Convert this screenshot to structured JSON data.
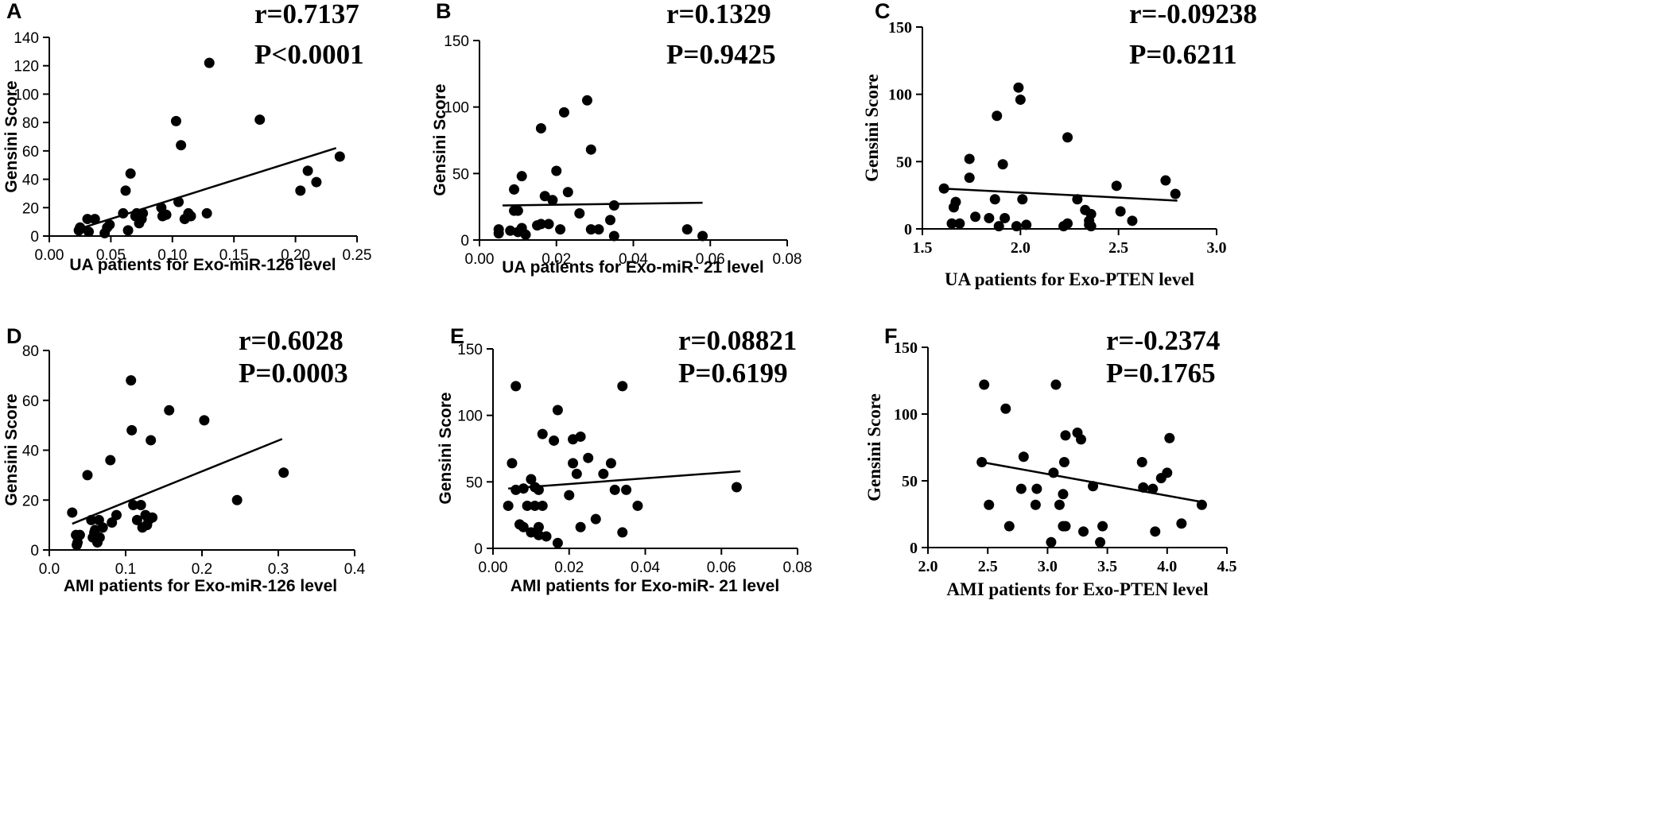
{
  "figure": {
    "layout": "2 rows x 3 columns of scatter plots with linear regression lines"
  },
  "chart_data": [
    {
      "panel": "A",
      "type": "scatter",
      "title": "",
      "xlabel": "UA patients for Exo-miR-126 level",
      "ylabel": "Gensini Score",
      "xlim": [
        0,
        0.25
      ],
      "ylim": [
        0,
        140
      ],
      "xticks": [
        0,
        0.05,
        0.1,
        0.15,
        0.2,
        0.25
      ],
      "xtick_labels": [
        "0.00",
        "0.05",
        "0.10",
        "0.15",
        "0.20",
        "0.25"
      ],
      "yticks": [
        0,
        20,
        40,
        60,
        80,
        100,
        120,
        140
      ],
      "ytick_labels": [
        "0",
        "20",
        "40",
        "60",
        "80",
        "100",
        "120",
        "140"
      ],
      "stats": {
        "r": "r=0.7137",
        "p": "P<0.0001"
      },
      "x": [
        0.024,
        0.025,
        0.031,
        0.032,
        0.037,
        0.045,
        0.047,
        0.049,
        0.06,
        0.062,
        0.064,
        0.066,
        0.07,
        0.071,
        0.073,
        0.075,
        0.076,
        0.091,
        0.092,
        0.095,
        0.103,
        0.105,
        0.107,
        0.11,
        0.113,
        0.115,
        0.128,
        0.13,
        0.171,
        0.204,
        0.21,
        0.217,
        0.236
      ],
      "y": [
        4,
        6,
        12,
        3,
        12,
        2,
        6,
        8,
        16,
        32,
        4,
        44,
        14,
        16,
        9,
        12,
        16,
        20,
        14,
        15,
        81,
        24,
        64,
        12,
        16,
        14,
        16,
        122,
        82,
        32,
        46,
        38,
        56
      ],
      "fit": {
        "x": [
          0.024,
          0.233
        ],
        "y": [
          5,
          62
        ]
      }
    },
    {
      "panel": "B",
      "type": "scatter",
      "title": "",
      "xlabel": "UA patients for Exo-miR- 21 level",
      "ylabel": "Gensini Score",
      "xlim": [
        0,
        0.08
      ],
      "ylim": [
        0,
        150
      ],
      "xticks": [
        0,
        0.02,
        0.04,
        0.06,
        0.08
      ],
      "xtick_labels": [
        "0.00",
        "0.02",
        "0.04",
        "0.06",
        "0.08"
      ],
      "yticks": [
        0,
        50,
        100,
        150
      ],
      "ytick_labels": [
        "0",
        "50",
        "100",
        "150"
      ],
      "stats": {
        "r": "r=0.1329",
        "p": "P=0.9425"
      },
      "x": [
        0.005,
        0.005,
        0.008,
        0.009,
        0.009,
        0.01,
        0.01,
        0.011,
        0.011,
        0.012,
        0.015,
        0.016,
        0.016,
        0.017,
        0.018,
        0.019,
        0.02,
        0.021,
        0.022,
        0.023,
        0.026,
        0.028,
        0.029,
        0.029,
        0.031,
        0.034,
        0.035,
        0.035,
        0.054,
        0.058
      ],
      "y": [
        8,
        5,
        7,
        22,
        38,
        6,
        22,
        9,
        48,
        4,
        11,
        12,
        84,
        33,
        12,
        30,
        52,
        8,
        96,
        36,
        20,
        105,
        68,
        8,
        8,
        15,
        26,
        3,
        8,
        3
      ],
      "fit": {
        "x": [
          0.006,
          0.058
        ],
        "y": [
          26,
          28
        ]
      }
    },
    {
      "panel": "C",
      "type": "scatter",
      "title": "",
      "xlabel": "UA patients for Exo-PTEN level",
      "ylabel": "Gensini Score",
      "xlim": [
        1.5,
        3.0
      ],
      "ylim": [
        0,
        150
      ],
      "xticks": [
        1.5,
        2.0,
        2.5,
        3.0
      ],
      "xtick_labels": [
        "1.5",
        "2.0",
        "2.5",
        "3.0"
      ],
      "yticks": [
        0,
        50,
        100,
        150
      ],
      "ytick_labels": [
        "0",
        "50",
        "100",
        "150"
      ],
      "stats": {
        "r": "r=-0.09238",
        "p": "P=0.6211"
      },
      "x": [
        1.61,
        1.65,
        1.66,
        1.67,
        1.69,
        1.74,
        1.74,
        1.77,
        1.84,
        1.87,
        1.88,
        1.89,
        1.91,
        1.92,
        1.98,
        1.99,
        2.0,
        2.01,
        2.03,
        2.22,
        2.24,
        2.24,
        2.29,
        2.33,
        2.35,
        2.35,
        2.36,
        2.36,
        2.49,
        2.51,
        2.57,
        2.74,
        2.79
      ],
      "y": [
        30,
        4,
        16,
        20,
        4,
        52,
        38,
        9,
        8,
        22,
        84,
        2,
        48,
        8,
        2,
        105,
        96,
        22,
        3,
        2,
        4,
        68,
        22,
        14,
        6,
        3,
        11,
        2,
        32,
        13,
        6,
        36,
        26
      ],
      "fit": {
        "x": [
          1.6,
          2.8
        ],
        "y": [
          30,
          21
        ]
      }
    },
    {
      "panel": "D",
      "type": "scatter",
      "title": "",
      "xlabel": "AMI patients for Exo-miR-126 level",
      "ylabel": "Gensini Score",
      "xlim": [
        0,
        0.4
      ],
      "ylim": [
        0,
        80
      ],
      "xticks": [
        0,
        0.1,
        0.2,
        0.3,
        0.4
      ],
      "xtick_labels": [
        "0.0",
        "0.1",
        "0.2",
        "0.3",
        "0.4"
      ],
      "yticks": [
        0,
        20,
        40,
        60,
        80
      ],
      "ytick_labels": [
        "0",
        "20",
        "40",
        "60",
        "80"
      ],
      "stats": {
        "r": "r=0.6028",
        "p": "P=0.0003"
      },
      "x": [
        0.03,
        0.035,
        0.036,
        0.037,
        0.04,
        0.05,
        0.055,
        0.057,
        0.059,
        0.06,
        0.063,
        0.065,
        0.066,
        0.07,
        0.08,
        0.082,
        0.088,
        0.107,
        0.108,
        0.11,
        0.115,
        0.12,
        0.122,
        0.126,
        0.128,
        0.13,
        0.133,
        0.135,
        0.157,
        0.203,
        0.246,
        0.307
      ],
      "y": [
        15,
        6,
        2,
        3,
        6,
        30,
        12,
        5,
        7,
        8,
        3,
        12,
        5,
        9,
        36,
        11,
        14,
        68,
        48,
        18,
        12,
        18,
        9,
        14,
        10,
        12,
        44,
        13,
        56,
        52,
        20,
        31
      ],
      "fit": {
        "x": [
          0.03,
          0.305
        ],
        "y": [
          10.5,
          44.5
        ]
      }
    },
    {
      "panel": "E",
      "type": "scatter",
      "title": "",
      "xlabel": "AMI patients for Exo-miR- 21 level",
      "ylabel": "Gensini Score",
      "xlim": [
        0,
        0.08
      ],
      "ylim": [
        0,
        150
      ],
      "xticks": [
        0,
        0.02,
        0.04,
        0.06,
        0.08
      ],
      "xtick_labels": [
        "0.00",
        "0.02",
        "0.04",
        "0.06",
        "0.08"
      ],
      "yticks": [
        0,
        50,
        100,
        150
      ],
      "ytick_labels": [
        "0",
        "50",
        "100",
        "150"
      ],
      "stats": {
        "r": "r=0.08821",
        "p": "P=0.6199"
      },
      "x": [
        0.004,
        0.005,
        0.006,
        0.006,
        0.007,
        0.008,
        0.008,
        0.009,
        0.01,
        0.01,
        0.011,
        0.011,
        0.012,
        0.012,
        0.012,
        0.013,
        0.013,
        0.014,
        0.016,
        0.017,
        0.017,
        0.02,
        0.021,
        0.021,
        0.022,
        0.023,
        0.023,
        0.025,
        0.027,
        0.029,
        0.031,
        0.032,
        0.034,
        0.034,
        0.035,
        0.038,
        0.064
      ],
      "y": [
        32,
        64,
        44,
        122,
        18,
        45,
        16,
        32,
        52,
        12,
        32,
        46,
        10,
        44,
        16,
        86,
        32,
        9,
        81,
        104,
        4,
        40,
        82,
        64,
        56,
        84,
        16,
        68,
        22,
        56,
        64,
        44,
        122,
        12,
        44,
        32,
        46
      ],
      "fit": {
        "x": [
          0.004,
          0.065
        ],
        "y": [
          45,
          58
        ]
      }
    },
    {
      "panel": "F",
      "type": "scatter",
      "title": "",
      "xlabel": "AMI patients for Exo-PTEN level",
      "ylabel": "Gensini Score",
      "xlim": [
        2.0,
        4.5
      ],
      "ylim": [
        0,
        150
      ],
      "xticks": [
        2.0,
        2.5,
        3.0,
        3.5,
        4.0,
        4.5
      ],
      "xtick_labels": [
        "2.0",
        "2.5",
        "3.0",
        "3.5",
        "4.0",
        "4.5"
      ],
      "yticks": [
        0,
        50,
        100,
        150
      ],
      "ytick_labels": [
        "0",
        "50",
        "100",
        "150"
      ],
      "stats": {
        "r": "r=-0.2374",
        "p": "P=0.1765"
      },
      "x": [
        2.45,
        2.47,
        2.51,
        2.65,
        2.68,
        2.78,
        2.8,
        2.9,
        2.91,
        3.03,
        3.05,
        3.07,
        3.1,
        3.13,
        3.13,
        3.14,
        3.15,
        3.15,
        3.25,
        3.28,
        3.3,
        3.38,
        3.44,
        3.46,
        3.79,
        3.8,
        3.88,
        3.9,
        3.95,
        4.0,
        4.02,
        4.12,
        4.29
      ],
      "y": [
        64,
        122,
        32,
        104,
        16,
        44,
        68,
        32,
        44,
        4,
        56,
        122,
        32,
        16,
        40,
        64,
        84,
        16,
        86,
        81,
        12,
        46,
        4,
        16,
        64,
        45,
        44,
        12,
        52,
        56,
        82,
        18,
        32
      ],
      "fit": {
        "x": [
          2.45,
          4.3
        ],
        "y": [
          64,
          34
        ]
      }
    }
  ]
}
